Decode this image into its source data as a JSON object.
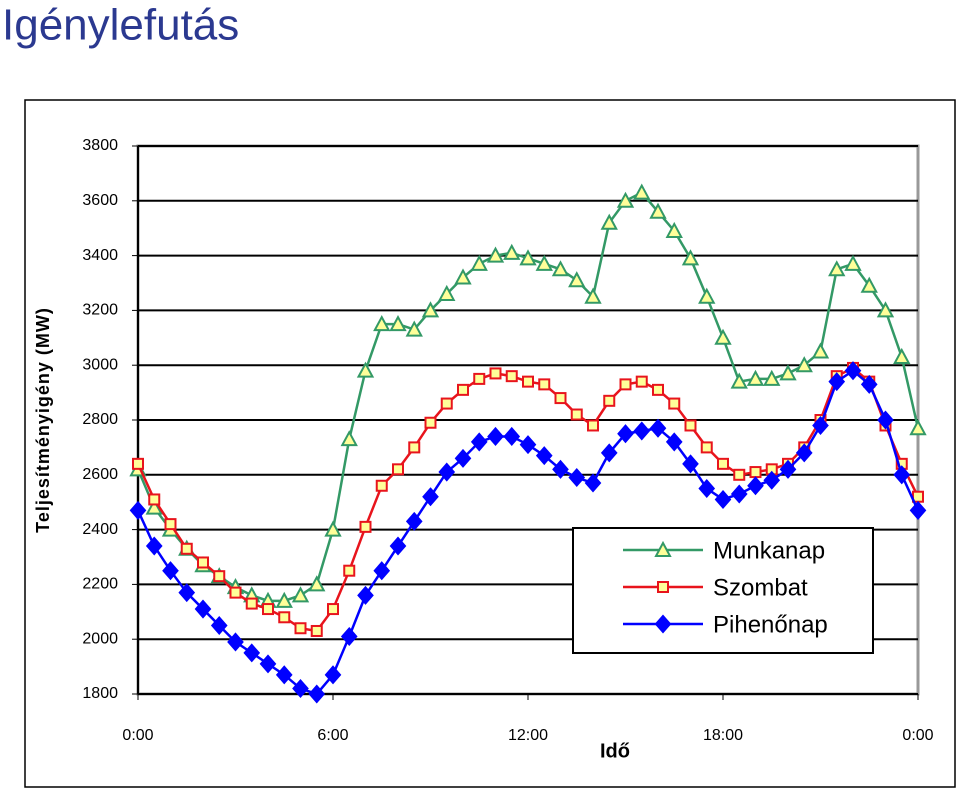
{
  "chart_data": {
    "type": "line",
    "title": "Igénylefutás",
    "x_label": "Idő",
    "y_label": "Teljesítményigény (MW)",
    "x": [
      0,
      0.5,
      1,
      1.5,
      2,
      2.5,
      3,
      3.5,
      4,
      4.5,
      5,
      5.5,
      6,
      6.5,
      7,
      7.5,
      8,
      8.5,
      9,
      9.5,
      10,
      10.5,
      11,
      11.5,
      12,
      12.5,
      13,
      13.5,
      14,
      14.5,
      15,
      15.5,
      16,
      16.5,
      17,
      17.5,
      18,
      18.5,
      19,
      19.5,
      20,
      20.5,
      21,
      21.5,
      22,
      22.5,
      23,
      23.5,
      24
    ],
    "series": [
      {
        "name": "Munkanap",
        "color": "#339966",
        "marker": "triangle",
        "values": [
          2620,
          2480,
          2400,
          2330,
          2270,
          2230,
          2190,
          2160,
          2140,
          2140,
          2160,
          2200,
          2400,
          2730,
          2980,
          3150,
          3150,
          3130,
          3200,
          3260,
          3320,
          3370,
          3400,
          3410,
          3390,
          3370,
          3350,
          3310,
          3250,
          3520,
          3600,
          3630,
          3560,
          3490,
          3390,
          3250,
          3100,
          2940,
          2950,
          2950,
          2970,
          3000,
          3050,
          3350,
          3370,
          3290,
          3200,
          3030,
          2770
        ]
      },
      {
        "name": "Szombat",
        "color": "#e8141c",
        "marker": "square",
        "values": [
          2640,
          2510,
          2420,
          2330,
          2280,
          2230,
          2170,
          2130,
          2110,
          2080,
          2040,
          2030,
          2110,
          2250,
          2410,
          2560,
          2620,
          2700,
          2790,
          2860,
          2910,
          2950,
          2970,
          2960,
          2940,
          2930,
          2880,
          2820,
          2780,
          2870,
          2930,
          2940,
          2910,
          2860,
          2780,
          2700,
          2640,
          2600,
          2610,
          2620,
          2640,
          2700,
          2800,
          2960,
          2990,
          2940,
          2780,
          2640,
          2520
        ]
      },
      {
        "name": "Pihenőnap",
        "color": "#0000ff",
        "marker": "diamond",
        "values": [
          2470,
          2340,
          2250,
          2170,
          2110,
          2050,
          1990,
          1950,
          1910,
          1870,
          1820,
          1800,
          1870,
          2010,
          2160,
          2250,
          2340,
          2430,
          2520,
          2610,
          2660,
          2720,
          2740,
          2740,
          2710,
          2670,
          2620,
          2590,
          2570,
          2680,
          2750,
          2760,
          2770,
          2720,
          2640,
          2550,
          2510,
          2530,
          2560,
          2580,
          2620,
          2680,
          2780,
          2940,
          2980,
          2930,
          2800,
          2600,
          2470
        ]
      }
    ],
    "xlim": [
      0,
      24
    ],
    "xticks": [
      {
        "value": 0,
        "label": "0:00"
      },
      {
        "value": 6,
        "label": "6:00"
      },
      {
        "value": 12,
        "label": "12:00"
      },
      {
        "value": 18,
        "label": "18:00"
      },
      {
        "value": 24,
        "label": "0:00"
      }
    ],
    "ylim": [
      1800,
      3800
    ],
    "yticks": [
      1800,
      2000,
      2200,
      2400,
      2600,
      2800,
      3000,
      3200,
      3400,
      3600,
      3800
    ],
    "grid": true,
    "legend": "lower right"
  }
}
